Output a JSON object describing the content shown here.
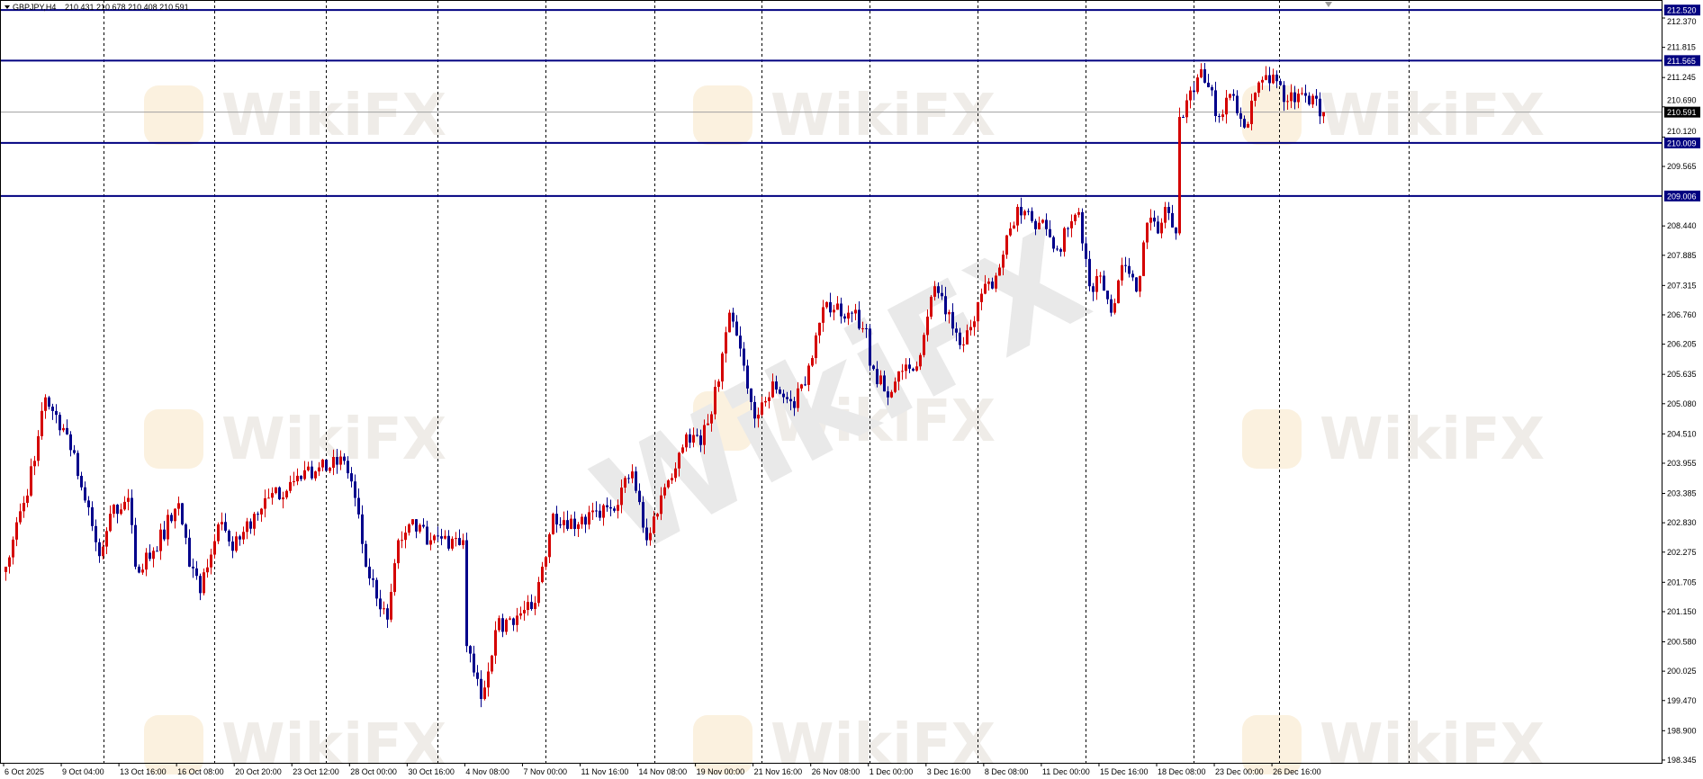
{
  "header": {
    "symbol": "GBPJPY,H4",
    "ohlc": "210.431 210.678 210.408 210.591"
  },
  "watermark": "WikiFX",
  "colors": {
    "bull": "#d40000",
    "bear": "#00008b",
    "level_line": "#000080",
    "price_line": "#a0a0a0",
    "grid": "#000000"
  },
  "chart_data": {
    "type": "candlestick",
    "title": "GBPJPY,H4",
    "timeframe": "H4",
    "grid": true,
    "ylim": [
      198.345,
      212.52
    ],
    "y_ticks": [
      "212.370",
      "211.815",
      "211.245",
      "210.690",
      "210.120",
      "209.565",
      "208.440",
      "207.885",
      "207.315",
      "206.760",
      "206.205",
      "205.635",
      "205.080",
      "204.510",
      "203.955",
      "203.385",
      "202.830",
      "202.275",
      "201.705",
      "201.150",
      "200.580",
      "200.025",
      "199.470",
      "198.900",
      "198.345"
    ],
    "x_ticks": [
      "6 Oct 2025",
      "9 Oct 04:00",
      "13 Oct 16:00",
      "16 Oct 08:00",
      "20 Oct 20:00",
      "23 Oct 12:00",
      "28 Oct 00:00",
      "30 Oct 16:00",
      "4 Nov 08:00",
      "7 Nov 00:00",
      "11 Nov 16:00",
      "14 Nov 08:00",
      "19 Nov 00:00",
      "21 Nov 16:00",
      "26 Nov 08:00",
      "1 Dec 00:00",
      "3 Dec 16:00",
      "8 Dec 08:00",
      "11 Dec 00:00",
      "15 Dec 16:00",
      "18 Dec 08:00",
      "23 Dec 00:00",
      "26 Dec 16:00"
    ],
    "horizontal_levels": [
      {
        "price": "212.520"
      },
      {
        "price": "211.565"
      },
      {
        "price": "210.009"
      },
      {
        "price": "209.006"
      }
    ],
    "current_price": "210.591",
    "close_path": [
      [
        0,
        202.0
      ],
      [
        8,
        204.0
      ],
      [
        11,
        205.2
      ],
      [
        17,
        204.5
      ],
      [
        21,
        203.5
      ],
      [
        26,
        202.2
      ],
      [
        29,
        203.0
      ],
      [
        34,
        203.3
      ],
      [
        36,
        202.0
      ],
      [
        41,
        202.3
      ],
      [
        48,
        203.2
      ],
      [
        51,
        202.0
      ],
      [
        54,
        201.5
      ],
      [
        59,
        202.8
      ],
      [
        63,
        202.3
      ],
      [
        69,
        203.0
      ],
      [
        79,
        203.6
      ],
      [
        86,
        203.8
      ],
      [
        94,
        204.0
      ],
      [
        97,
        203.3
      ],
      [
        100,
        202.0
      ],
      [
        106,
        201.0
      ],
      [
        109,
        202.5
      ],
      [
        112,
        202.8
      ],
      [
        118,
        202.5
      ],
      [
        127,
        202.5
      ],
      [
        128,
        200.5
      ],
      [
        132,
        199.5
      ],
      [
        136,
        200.8
      ],
      [
        139,
        201.0
      ],
      [
        146,
        201.2
      ],
      [
        149,
        202.0
      ],
      [
        152,
        203.0
      ],
      [
        159,
        202.8
      ],
      [
        168,
        203.1
      ],
      [
        174,
        203.8
      ],
      [
        178,
        202.5
      ],
      [
        183,
        203.5
      ],
      [
        189,
        204.5
      ],
      [
        193,
        204.3
      ],
      [
        198,
        205.5
      ],
      [
        201,
        206.8
      ],
      [
        205,
        205.8
      ],
      [
        208,
        204.8
      ],
      [
        213,
        205.5
      ],
      [
        219,
        205.0
      ],
      [
        223,
        205.8
      ],
      [
        228,
        207.0
      ],
      [
        234,
        206.8
      ],
      [
        239,
        206.5
      ],
      [
        240,
        205.8
      ],
      [
        245,
        205.2
      ],
      [
        249,
        205.7
      ],
      [
        254,
        206.0
      ],
      [
        258,
        207.3
      ],
      [
        263,
        206.5
      ],
      [
        266,
        206.2
      ],
      [
        270,
        207.0
      ],
      [
        275,
        207.5
      ],
      [
        281,
        208.8
      ],
      [
        287,
        208.5
      ],
      [
        292,
        208.0
      ],
      [
        298,
        208.7
      ],
      [
        301,
        207.3
      ],
      [
        304,
        207.5
      ],
      [
        307,
        206.8
      ],
      [
        310,
        207.7
      ],
      [
        314,
        207.2
      ],
      [
        317,
        208.5
      ],
      [
        320,
        208.3
      ],
      [
        322,
        208.8
      ],
      [
        325,
        208.3
      ],
      [
        326,
        210.5
      ],
      [
        329,
        211.0
      ],
      [
        332,
        211.4
      ],
      [
        337,
        210.5
      ],
      [
        341,
        210.9
      ],
      [
        344,
        210.3
      ],
      [
        349,
        211.2
      ],
      [
        352,
        211.3
      ],
      [
        356,
        210.8
      ],
      [
        361,
        210.9
      ],
      [
        366,
        210.591
      ]
    ]
  }
}
